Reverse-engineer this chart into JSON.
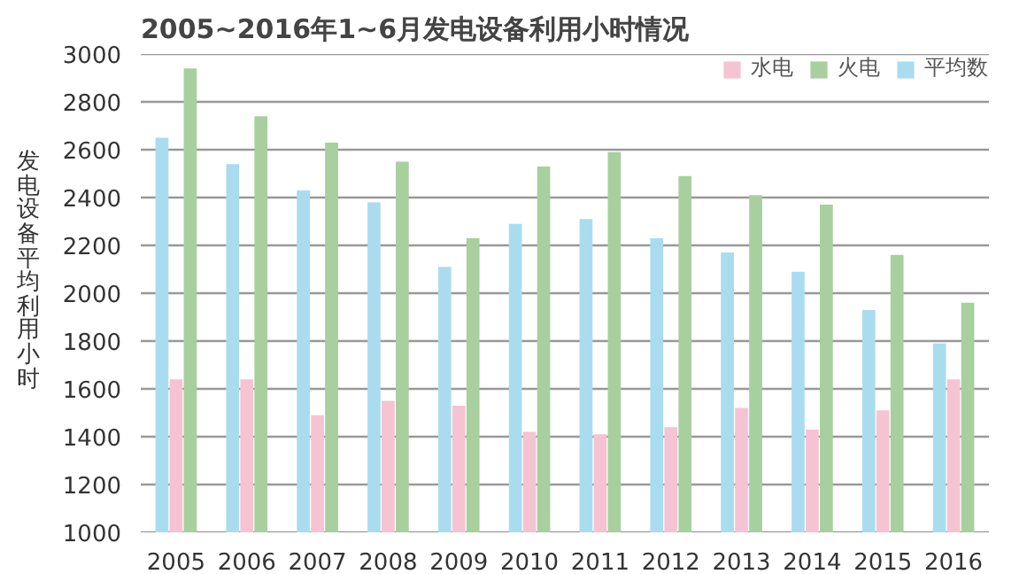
{
  "chart_data": {
    "type": "bar",
    "title": "2005~2016年1~6月发电设备利用小时情况",
    "ylabel": "发电设备平均利用小时",
    "categories": [
      "2005",
      "2006",
      "2007",
      "2008",
      "2009",
      "2010",
      "2011",
      "2012",
      "2013",
      "2014",
      "2015",
      "2016"
    ],
    "series": [
      {
        "name": "平均数",
        "color": "#aadcf0",
        "values": [
          2650,
          2540,
          2430,
          2380,
          2110,
          2290,
          2310,
          2230,
          2170,
          2090,
          1930,
          1790
        ]
      },
      {
        "name": "水电",
        "color": "#f6c3d3",
        "values": [
          1640,
          1640,
          1490,
          1550,
          1530,
          1420,
          1410,
          1440,
          1520,
          1430,
          1510,
          1640
        ]
      },
      {
        "name": "火电",
        "color": "#a8cf9e",
        "values": [
          2940,
          2740,
          2630,
          2550,
          2230,
          2530,
          2590,
          2490,
          2410,
          2370,
          2160,
          1960
        ]
      }
    ],
    "ylim": [
      1000,
      3000
    ],
    "yticks": [
      1000,
      1200,
      1400,
      1600,
      1800,
      2000,
      2200,
      2400,
      2600,
      2800,
      3000
    ],
    "grid": "y",
    "legend": "top right"
  }
}
